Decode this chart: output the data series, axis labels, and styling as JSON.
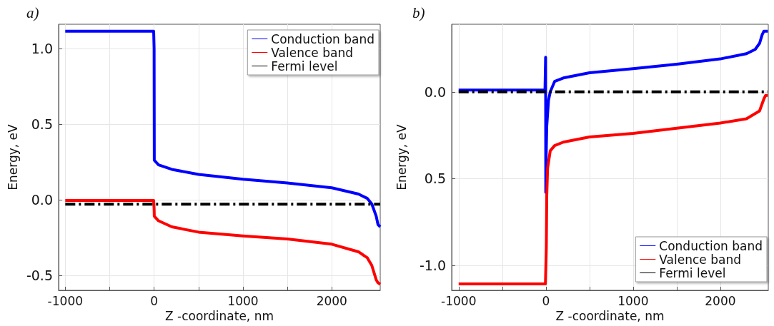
{
  "chart_data": [
    {
      "type": "line",
      "title": "a)",
      "xlabel": "Z -coordinate, nm",
      "ylabel": "Energy, eV",
      "xlim": [
        -1075,
        2545
      ],
      "ylim": [
        -0.6,
        1.16
      ],
      "xticks": [
        -1000,
        {
          "value": -500,
          "label": null
        },
        0,
        {
          "value": 500,
          "label": null
        },
        1000,
        {
          "value": 1500,
          "label": null
        },
        2000
      ],
      "yticks": [
        {
          "value": -0.5,
          "label": "-0.5"
        },
        {
          "value": 0,
          "label": "0.0"
        },
        {
          "value": 0.5,
          "label": "0.5"
        },
        {
          "value": 1,
          "label": "1.0"
        }
      ],
      "grid": true,
      "legend": "top right",
      "marker": "none",
      "series": [
        {
          "name": "Conduction band",
          "color": "#0000ff",
          "line_style": "solid",
          "x": [
            -1000,
            -5,
            0,
            2,
            50,
            200,
            500,
            1000,
            1500,
            2000,
            2300,
            2400,
            2450,
            2500,
            2520,
            2545
          ],
          "values": [
            1.114,
            1.114,
            1.0,
            0.26,
            0.23,
            0.2,
            0.167,
            0.135,
            0.11,
            0.078,
            0.037,
            0.008,
            -0.028,
            -0.11,
            -0.165,
            -0.18
          ]
        },
        {
          "name": "Valence band",
          "color": "#ff0000",
          "line_style": "solid",
          "x": [
            -1000,
            -5,
            0,
            2,
            50,
            200,
            500,
            1000,
            1500,
            2000,
            2300,
            2400,
            2450,
            2500,
            2520,
            2545
          ],
          "values": [
            -0.005,
            -0.005,
            -0.06,
            -0.11,
            -0.14,
            -0.18,
            -0.215,
            -0.24,
            -0.26,
            -0.295,
            -0.345,
            -0.385,
            -0.435,
            -0.53,
            -0.55,
            -0.56
          ]
        },
        {
          "name": "Fermi level",
          "color": "#000000",
          "line_style": "dashdot",
          "x": [
            -1000,
            2545
          ],
          "values": [
            -0.03,
            -0.03
          ]
        }
      ]
    },
    {
      "type": "line",
      "title": "b)",
      "xlabel": "Z -coordinate, nm",
      "ylabel": "Energy, eV",
      "xlim": [
        -1080,
        2550
      ],
      "ylim": [
        -1.145,
        0.39
      ],
      "xticks": [
        -1000,
        {
          "value": -500,
          "label": null
        },
        0,
        {
          "value": 500,
          "label": null
        },
        1000,
        {
          "value": 1500,
          "label": null
        },
        2000
      ],
      "yticks": [
        {
          "value": -1,
          "label": "-1.0"
        },
        {
          "value": -0.5,
          "label": "0.5"
        },
        {
          "value": 0,
          "label": "0.0"
        }
      ],
      "grid": true,
      "legend": "bottom right",
      "marker": "none",
      "series": [
        {
          "name": "Conduction band",
          "color": "#0000ff",
          "line_style": "solid",
          "x": [
            -1000,
            -10,
            -3,
            -1,
            2,
            10,
            30,
            50,
            100,
            200,
            500,
            1000,
            1500,
            2000,
            2300,
            2400,
            2450,
            2480,
            2500,
            2545
          ],
          "values": [
            0.01,
            0.01,
            0.2,
            -0.58,
            -0.4,
            -0.2,
            -0.05,
            0.0,
            0.06,
            0.08,
            0.11,
            0.134,
            0.16,
            0.19,
            0.22,
            0.245,
            0.28,
            0.33,
            0.35,
            0.35
          ]
        },
        {
          "name": "Valence band",
          "color": "#ff0000",
          "line_style": "solid",
          "x": [
            -1000,
            -5,
            5,
            10,
            20,
            50,
            100,
            200,
            500,
            1000,
            1500,
            2000,
            2300,
            2450,
            2500,
            2520,
            2545
          ],
          "values": [
            -1.108,
            -1.108,
            -0.9,
            -0.6,
            -0.44,
            -0.34,
            -0.31,
            -0.29,
            -0.26,
            -0.24,
            -0.21,
            -0.18,
            -0.155,
            -0.11,
            -0.04,
            -0.02,
            -0.02
          ]
        },
        {
          "name": "Fermi level",
          "color": "#000000",
          "line_style": "dashdot",
          "x": [
            -1000,
            2545
          ],
          "values": [
            0.0,
            0.0
          ]
        }
      ]
    }
  ]
}
